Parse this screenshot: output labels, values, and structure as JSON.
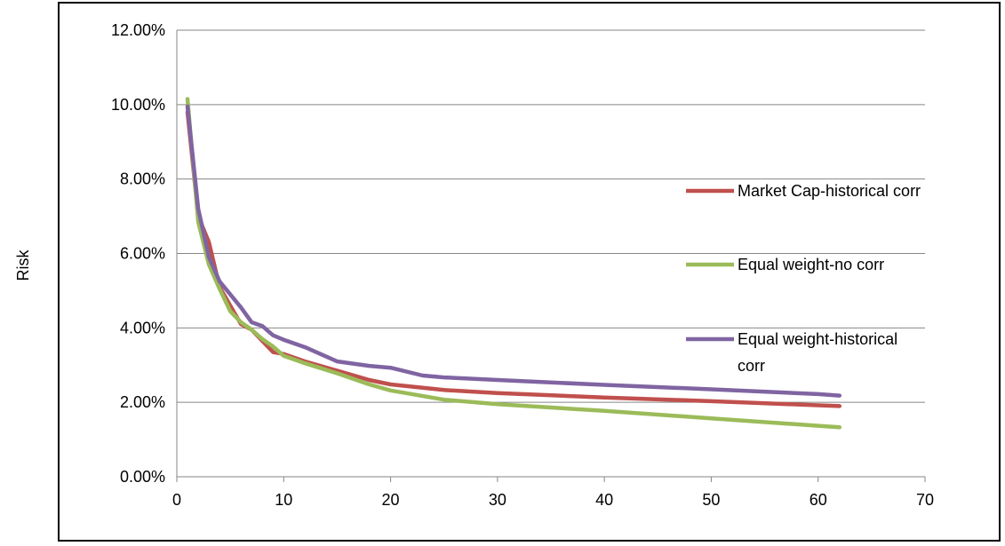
{
  "chart_data": {
    "type": "line",
    "title": "",
    "xlabel": "",
    "ylabel": "Risk",
    "xlim": [
      0,
      70
    ],
    "ylim": [
      0,
      0.12
    ],
    "x_ticks": [
      "0",
      "10",
      "20",
      "30",
      "40",
      "50",
      "60",
      "70"
    ],
    "y_ticks": [
      "0.00%",
      "2.00%",
      "4.00%",
      "6.00%",
      "8.00%",
      "10.00%",
      "12.00%"
    ],
    "grid": "horizontal",
    "legend_position": "right",
    "series": [
      {
        "name": "Market Cap-historical corr",
        "color": "#c0504d",
        "x": [
          1,
          2,
          3,
          4,
          5,
          6,
          7,
          8,
          9,
          10,
          12,
          15,
          18,
          20,
          25,
          30,
          40,
          50,
          60,
          62
        ],
        "y": [
          0.098,
          0.07,
          0.063,
          0.051,
          0.046,
          0.041,
          0.0395,
          0.0365,
          0.0335,
          0.033,
          0.031,
          0.0285,
          0.026,
          0.0248,
          0.0233,
          0.0225,
          0.0213,
          0.0203,
          0.0192,
          0.019
        ]
      },
      {
        "name": "Equal weight-no corr",
        "color": "#9bbb59",
        "x": [
          1,
          2,
          3,
          4,
          5,
          6,
          7,
          8,
          9,
          10,
          12,
          15,
          18,
          20,
          25,
          30,
          40,
          50,
          60,
          62
        ],
        "y": [
          0.1015,
          0.0685,
          0.057,
          0.0505,
          0.0445,
          0.0415,
          0.0395,
          0.037,
          0.035,
          0.0325,
          0.0305,
          0.0278,
          0.0248,
          0.0232,
          0.0207,
          0.0195,
          0.0177,
          0.0157,
          0.0137,
          0.0133
        ]
      },
      {
        "name": "Equal weight-historical corr",
        "color": "#8064a2",
        "x": [
          1,
          2,
          3,
          4,
          5,
          6,
          7,
          8,
          9,
          10,
          12,
          15,
          18,
          20,
          23,
          25,
          30,
          40,
          50,
          60,
          62
        ],
        "y": [
          0.0995,
          0.072,
          0.059,
          0.0525,
          0.049,
          0.0455,
          0.0415,
          0.0405,
          0.038,
          0.0368,
          0.0348,
          0.031,
          0.0298,
          0.0293,
          0.0272,
          0.0267,
          0.026,
          0.0247,
          0.0235,
          0.0222,
          0.0218
        ]
      }
    ]
  }
}
